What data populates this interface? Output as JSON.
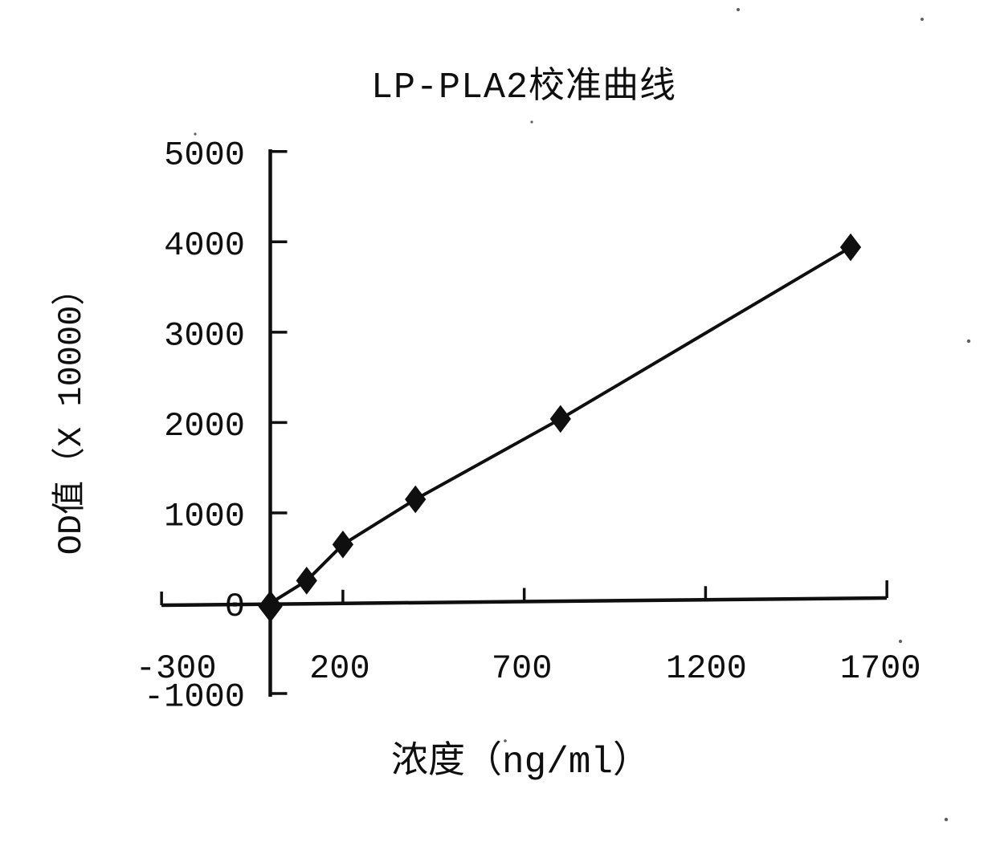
{
  "page": {
    "background": "#ffffff",
    "ink_color": "#0f0f0f"
  },
  "chart_data": {
    "type": "line",
    "title": "LP-PLA2校准曲线",
    "xlabel": "浓度（ng/ml）",
    "ylabel": "OD值（X 10000）",
    "x_ticks": [
      "-300",
      "200",
      "700",
      "1200",
      "1700"
    ],
    "y_ticks": [
      "5000",
      "4000",
      "3000",
      "2000",
      "1000",
      "0",
      "-1000"
    ],
    "xlim": [
      -300,
      1700
    ],
    "ylim": [
      -1000,
      5000
    ],
    "grid": false,
    "legend_position": "none",
    "marker": "diamond",
    "series": [
      {
        "name": "LP-PLA2 calibration curve",
        "points": [
          {
            "x": 0,
            "y": 0
          },
          {
            "x": 100,
            "y": 250
          },
          {
            "x": 200,
            "y": 650
          },
          {
            "x": 400,
            "y": 1150
          },
          {
            "x": 800,
            "y": 2040
          },
          {
            "x": 1600,
            "y": 3940
          }
        ]
      }
    ]
  }
}
